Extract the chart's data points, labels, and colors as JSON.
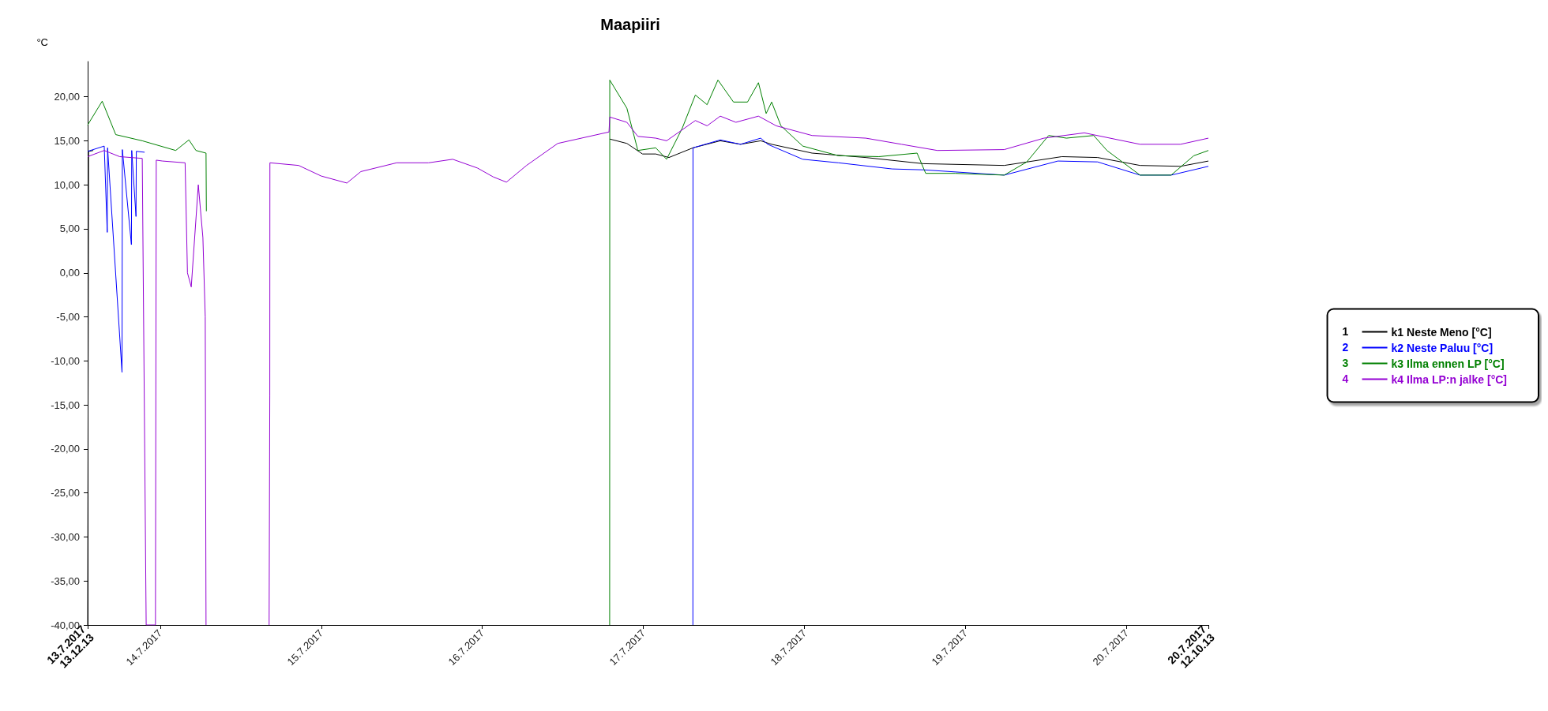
{
  "chart_data": {
    "type": "line",
    "title": "Maapiiri",
    "ylabel": "°C",
    "annotations": [
      "1",
      "2",
      "3",
      "4"
    ],
    "legend": "right",
    "grid": false,
    "marker": "none",
    "line_style": "solid",
    "xlim": [
      "2017-07-13T13:12",
      "2017-07-20T12:10"
    ],
    "xticks": [
      {
        "value": "2017-07-13T13:12",
        "label": "13.7.2017\n13.12.13"
      },
      {
        "value": "2017-07-14",
        "label": "14.7.2017"
      },
      {
        "value": "2017-07-15",
        "label": "15.7.2017"
      },
      {
        "value": "2017-07-16",
        "label": "16.7.2017"
      },
      {
        "value": "2017-07-17",
        "label": "17.7.2017"
      },
      {
        "value": "2017-07-18",
        "label": "18.7.2017"
      },
      {
        "value": "2017-07-19",
        "label": "19.7.2017"
      },
      {
        "value": "2017-07-20",
        "label": "20.7.2017"
      },
      {
        "value": "2017-07-20T12:10",
        "label": "20.7.2017\n12.10.13"
      }
    ],
    "ylim": [
      -40,
      24
    ],
    "yticks": [
      {
        "value": -40,
        "label": "-40,00"
      },
      {
        "value": -35,
        "label": "-35,00"
      },
      {
        "value": -30,
        "label": "-30,00"
      },
      {
        "value": -25,
        "label": "-25,00"
      },
      {
        "value": -20,
        "label": "-20,00"
      },
      {
        "value": -15,
        "label": "-15,00"
      },
      {
        "value": -10,
        "label": "-10,00"
      },
      {
        "value": -5,
        "label": "-5,00"
      },
      {
        "value": 0,
        "label": "0,00"
      },
      {
        "value": 5,
        "label": "5,00"
      },
      {
        "value": 10,
        "label": "10,00"
      },
      {
        "value": 15,
        "label": "15,00"
      },
      {
        "value": 20,
        "label": "20,00"
      }
    ],
    "series": [
      {
        "name": "k1 Neste Meno [°C]",
        "color": "#000000",
        "x": [
          "2017-07-13T13:12",
          "2017-07-13T13:20",
          "2017-07-13T14:02",
          "2017-07-13T15:00",
          "2017-07-16T18:59",
          "2017-07-16T21:32",
          "2017-07-16T23:52",
          "2017-07-17T01:50",
          "2017-07-17T03:48",
          "2017-07-17T07:23",
          "2017-07-17T11:27",
          "2017-07-17T14:28",
          "2017-07-17T17:28",
          "2017-07-17T19:06",
          "2017-07-18T01:07",
          "2017-07-18T09:07",
          "2017-07-18T17:42",
          "2017-07-19T05:45",
          "2017-07-19T14:20",
          "2017-07-19T19:40",
          "2017-07-20T01:59",
          "2017-07-20T08:01",
          "2017-07-20T12:10"
        ],
        "values": [
          -40,
          13.8,
          13.9,
          null,
          15.2,
          14.7,
          13.5,
          13.5,
          13.1,
          14.2,
          15.0,
          14.6,
          15.0,
          14.6,
          13.6,
          13.1,
          12.4,
          12.2,
          13.2,
          13.1,
          12.2,
          12.1,
          12.7
        ]
      },
      {
        "name": "k2 Neste Paluu [°C]",
        "color": "#0000ff",
        "x": [
          "2017-07-13T13:12",
          "2017-07-13T15:40",
          "2017-07-13T16:07",
          "2017-07-13T16:10",
          "2017-07-13T18:19",
          "2017-07-13T18:22",
          "2017-07-13T19:43",
          "2017-07-13T19:46",
          "2017-07-13T20:24",
          "2017-07-13T20:27",
          "2017-07-13T21:41",
          "2017-07-14T00:00",
          "2017-07-17T07:22",
          "2017-07-17T07:23",
          "2017-07-17T11:27",
          "2017-07-17T14:28",
          "2017-07-17T17:28",
          "2017-07-17T18:31",
          "2017-07-17T23:44",
          "2017-07-18T05:04",
          "2017-07-18T13:04",
          "2017-07-18T17:42",
          "2017-07-19T05:45",
          "2017-07-19T13:45",
          "2017-07-19T19:40",
          "2017-07-20T01:59",
          "2017-07-20T06:37",
          "2017-07-20T12:10"
        ],
        "values": [
          13.8,
          14.4,
          4.6,
          14.2,
          -11.3,
          14.0,
          3.2,
          13.9,
          6.4,
          13.8,
          13.7,
          null,
          -40,
          14.2,
          15.1,
          14.6,
          15.3,
          14.6,
          12.9,
          12.5,
          11.8,
          11.7,
          11.1,
          12.7,
          12.6,
          11.1,
          11.1,
          12.1
        ]
      },
      {
        "name": "k3 Ilma ennen LP [°C]",
        "color": "#008000",
        "x": [
          "2017-07-13T13:12",
          "2017-07-13T15:22",
          "2017-07-13T17:23",
          "2017-07-13T21:20",
          "2017-07-14T02:19",
          "2017-07-14T04:17",
          "2017-07-14T05:20",
          "2017-07-14T06:50",
          "2017-07-14T06:53",
          "2017-07-14T12:00",
          "2017-07-16T18:58",
          "2017-07-16T18:59",
          "2017-07-16T21:32",
          "2017-07-16T23:10",
          "2017-07-17T01:50",
          "2017-07-17T03:27",
          "2017-07-17T05:46",
          "2017-07-17T07:44",
          "2017-07-17T09:29",
          "2017-07-17T11:06",
          "2017-07-17T13:25",
          "2017-07-17T15:30",
          "2017-07-17T17:08",
          "2017-07-17T18:17",
          "2017-07-17T19:06",
          "2017-07-17T20:29",
          "2017-07-17T23:44",
          "2017-07-18T05:04",
          "2017-07-18T11:05",
          "2017-07-18T16:46",
          "2017-07-18T18:03",
          "2017-07-18T22:27",
          "2017-07-19T05:45",
          "2017-07-19T09:07",
          "2017-07-19T12:22",
          "2017-07-19T15:01",
          "2017-07-19T19:05",
          "2017-07-19T21:03",
          "2017-07-20T01:59",
          "2017-07-20T06:37",
          "2017-07-20T09:59",
          "2017-07-20T12:10"
        ],
        "values": [
          16.8,
          19.5,
          15.7,
          15.0,
          13.9,
          15.1,
          13.9,
          13.6,
          7.0,
          null,
          -40,
          21.9,
          18.7,
          13.9,
          14.2,
          12.9,
          16.4,
          20.2,
          19.1,
          21.9,
          19.4,
          19.4,
          21.6,
          18.1,
          19.4,
          16.7,
          14.4,
          13.3,
          13.2,
          13.6,
          11.3,
          11.3,
          11.1,
          12.6,
          15.6,
          15.3,
          15.6,
          13.9,
          11.1,
          11.1,
          13.3,
          13.9
        ]
      },
      {
        "name": "k4 Ilma LP:n jalke [°C]",
        "color": "#9400d3",
        "x": [
          "2017-07-13T13:12",
          "2017-07-13T15:40",
          "2017-07-13T17:58",
          "2017-07-13T21:20",
          "2017-07-13T21:55",
          "2017-07-13T23:18",
          "2017-07-13T23:25",
          "2017-07-14T00:21",
          "2017-07-14T03:43",
          "2017-07-14T04:04",
          "2017-07-14T04:38",
          "2017-07-14T05:41",
          "2017-07-14T06:22",
          "2017-07-14T06:43",
          "2017-07-14T06:50",
          "2017-07-14T10:00",
          "2017-07-14T16:14",
          "2017-07-14T16:20",
          "2017-07-14T16:21",
          "2017-07-14T20:38",
          "2017-07-14T23:59",
          "2017-07-15T03:49",
          "2017-07-15T05:54",
          "2017-07-15T11:14",
          "2017-07-15T15:59",
          "2017-07-15T19:35",
          "2017-07-15T23:17",
          "2017-07-16T01:37",
          "2017-07-16T03:35",
          "2017-07-16T06:35",
          "2017-07-16T11:14",
          "2017-07-16T18:52",
          "2017-07-16T18:59",
          "2017-07-16T21:32",
          "2017-07-16T23:10",
          "2017-07-17T01:50",
          "2017-07-17T03:27",
          "2017-07-17T07:44",
          "2017-07-17T09:29",
          "2017-07-17T11:27",
          "2017-07-17T13:46",
          "2017-07-17T17:08",
          "2017-07-17T19:47",
          "2017-07-18T01:07",
          "2017-07-18T09:07",
          "2017-07-18T14:27",
          "2017-07-18T19:47",
          "2017-07-19T05:45",
          "2017-07-19T11:40",
          "2017-07-19T17:41",
          "2017-07-20T01:59",
          "2017-07-20T08:01",
          "2017-07-20T12:10"
        ],
        "values": [
          13.2,
          13.9,
          13.2,
          13.0,
          -40,
          -40,
          12.8,
          12.7,
          12.5,
          0,
          -1.6,
          10,
          4,
          -5,
          -40,
          null,
          -40,
          -14,
          12.5,
          12.2,
          11.0,
          10.2,
          11.5,
          12.5,
          12.5,
          12.9,
          11.9,
          10.9,
          10.3,
          12.2,
          14.7,
          16.0,
          17.7,
          17.1,
          15.5,
          15.3,
          15.0,
          17.3,
          16.7,
          17.8,
          17.1,
          17.8,
          16.7,
          15.6,
          15.3,
          14.6,
          13.9,
          14.0,
          15.3,
          15.9,
          14.6,
          14.6,
          15.3
        ]
      }
    ]
  }
}
